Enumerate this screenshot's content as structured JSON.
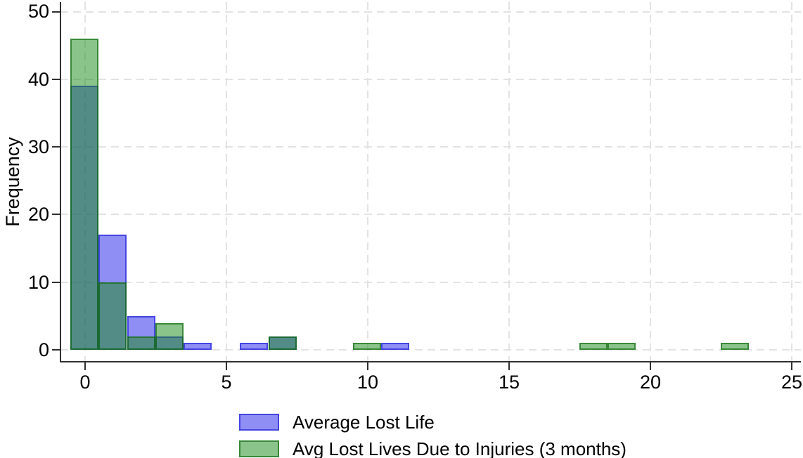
{
  "chart_data": {
    "type": "histogram",
    "title": "",
    "xlabel": "",
    "ylabel": "Frequency",
    "x_ticks": [
      0,
      5,
      10,
      15,
      20,
      25
    ],
    "y_ticks": [
      0,
      10,
      20,
      30,
      40,
      50
    ],
    "xlim": [
      -0.87,
      25.4
    ],
    "ylim": [
      0,
      50
    ],
    "bin_width": 1,
    "grid": {
      "dashed": true,
      "color": "#e3e3e3",
      "which": "both"
    },
    "axis_color": "#303030",
    "label_color": "#000000",
    "overlap_color": "#538c86",
    "series": [
      {
        "name": "Average Lost Life",
        "fill_rgba": "rgba(30,30,235,0.5)",
        "border_rgba": "rgba(25,25,215,0.62)",
        "rendered_fill_hex": "#8e8ef5",
        "bin_centers": [
          0,
          1,
          2,
          3,
          4,
          6,
          7,
          11
        ],
        "frequencies": [
          39,
          17,
          5,
          2,
          1,
          1,
          2,
          1
        ]
      },
      {
        "name": "Avg Lost Lives Due to Injuries (3 months)",
        "fill_rgba": "rgba(24,138,24,0.5)",
        "border_rgba": "rgba(18,108,18,0.68)",
        "rendered_fill_hex": "#8bc48b",
        "bin_centers": [
          0,
          1,
          2,
          3,
          7,
          10,
          18,
          19,
          23
        ],
        "frequencies": [
          46,
          10,
          2,
          4,
          2,
          1,
          1,
          1,
          1
        ]
      }
    ],
    "legend": {
      "position": "bottom",
      "entries": [
        "Average Lost Life",
        "Avg Lost Lives Due to Injuries (3 months)"
      ]
    }
  }
}
